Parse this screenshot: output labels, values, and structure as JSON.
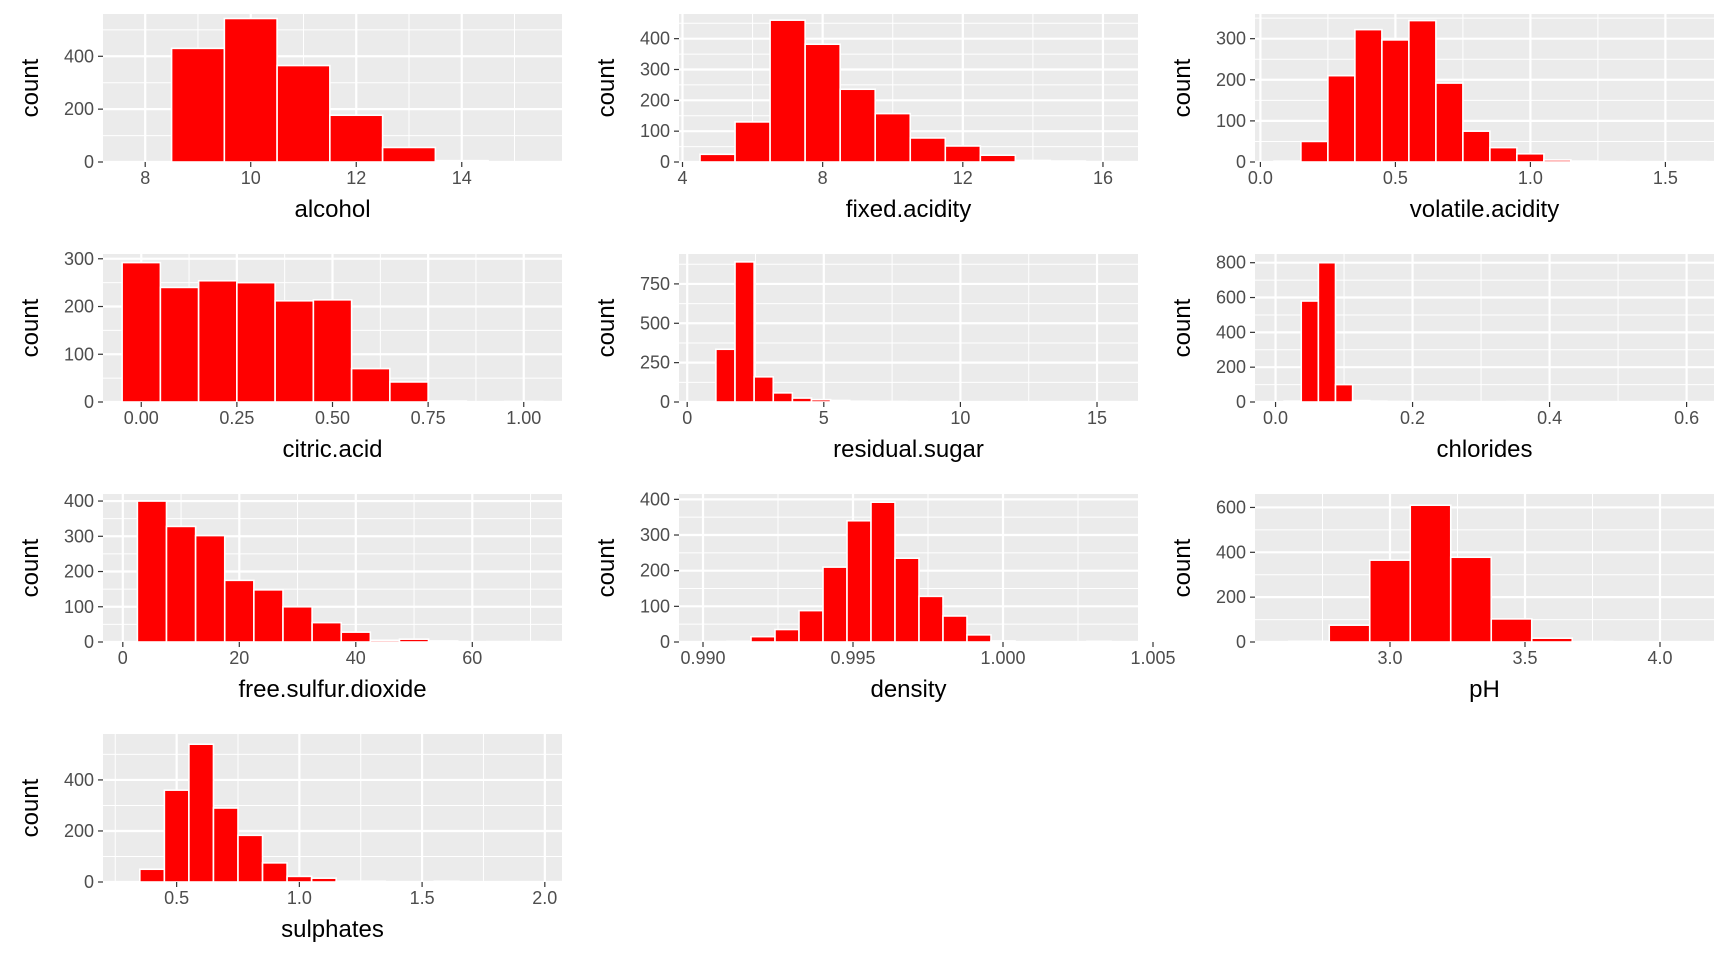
{
  "style": {
    "panel_bg": "#EBEBEB",
    "grid_color": "#FFFFFF",
    "bar_fill": "#FF0000",
    "bar_outline": "#FFFFFF",
    "tick_color": "#333333",
    "text_color": "#4D4D4D"
  },
  "chart_data": [
    {
      "type": "bar",
      "xlabel": "alcohol",
      "ylabel": "count",
      "xlim": [
        7.2,
        15.9
      ],
      "ylim": [
        0,
        560
      ],
      "xticks": [
        "8",
        "10",
        "12",
        "14"
      ],
      "yticks": [
        "0",
        "200",
        "400"
      ],
      "binwidth": 1,
      "bins": [
        {
          "x": 8,
          "count": 0
        },
        {
          "x": 9,
          "count": 430
        },
        {
          "x": 10,
          "count": 543
        },
        {
          "x": 11,
          "count": 365
        },
        {
          "x": 12,
          "count": 177
        },
        {
          "x": 13,
          "count": 55
        },
        {
          "x": 14,
          "count": 5
        },
        {
          "x": 15,
          "count": 1
        }
      ]
    },
    {
      "type": "bar",
      "xlabel": "fixed.acidity",
      "ylabel": "count",
      "xlim": [
        3.9,
        17.0
      ],
      "ylim": [
        0,
        480
      ],
      "xticks": [
        "4",
        "8",
        "12",
        "16"
      ],
      "yticks": [
        "0",
        "100",
        "200",
        "300",
        "400"
      ],
      "binwidth": 1,
      "bins": [
        {
          "x": 5,
          "count": 25
        },
        {
          "x": 6,
          "count": 130
        },
        {
          "x": 7,
          "count": 460
        },
        {
          "x": 8,
          "count": 382
        },
        {
          "x": 9,
          "count": 236
        },
        {
          "x": 10,
          "count": 157
        },
        {
          "x": 11,
          "count": 78
        },
        {
          "x": 12,
          "count": 52
        },
        {
          "x": 13,
          "count": 22
        },
        {
          "x": 14,
          "count": 5
        },
        {
          "x": 15,
          "count": 3
        },
        {
          "x": 16,
          "count": 1
        }
      ]
    },
    {
      "type": "bar",
      "xlabel": "volatile.acidity",
      "ylabel": "count",
      "xlim": [
        -0.02,
        1.68
      ],
      "ylim": [
        0,
        360
      ],
      "xticks": [
        "0.0",
        "0.5",
        "1.0",
        "1.5"
      ],
      "yticks": [
        "0",
        "100",
        "200",
        "300"
      ],
      "binwidth": 0.1,
      "bins": [
        {
          "x": 0.1,
          "count": 2
        },
        {
          "x": 0.2,
          "count": 50
        },
        {
          "x": 0.3,
          "count": 210
        },
        {
          "x": 0.4,
          "count": 322
        },
        {
          "x": 0.5,
          "count": 297
        },
        {
          "x": 0.6,
          "count": 344
        },
        {
          "x": 0.7,
          "count": 192
        },
        {
          "x": 0.8,
          "count": 75
        },
        {
          "x": 0.9,
          "count": 35
        },
        {
          "x": 1.0,
          "count": 20
        },
        {
          "x": 1.1,
          "count": 5
        },
        {
          "x": 1.2,
          "count": 2
        },
        {
          "x": 1.3,
          "count": 1
        },
        {
          "x": 1.6,
          "count": 1
        }
      ]
    },
    {
      "type": "bar",
      "xlabel": "citric.acid",
      "ylabel": "count",
      "xlim": [
        -0.1,
        1.1
      ],
      "ylim": [
        0,
        310
      ],
      "xticks": [
        "0.00",
        "0.25",
        "0.50",
        "0.75",
        "1.00"
      ],
      "yticks": [
        "0",
        "100",
        "200",
        "300"
      ],
      "binwidth": 0.1,
      "bins": [
        {
          "x": 0.0,
          "count": 292
        },
        {
          "x": 0.1,
          "count": 240
        },
        {
          "x": 0.2,
          "count": 254
        },
        {
          "x": 0.3,
          "count": 250
        },
        {
          "x": 0.4,
          "count": 212
        },
        {
          "x": 0.5,
          "count": 214
        },
        {
          "x": 0.6,
          "count": 70
        },
        {
          "x": 0.7,
          "count": 42
        },
        {
          "x": 0.8,
          "count": 2
        },
        {
          "x": 1.0,
          "count": 1
        }
      ]
    },
    {
      "type": "bar",
      "xlabel": "residual.sugar",
      "ylabel": "count",
      "xlim": [
        -0.3,
        16.5
      ],
      "ylim": [
        0,
        940
      ],
      "xticks": [
        "0",
        "5",
        "10",
        "15"
      ],
      "yticks": [
        "0",
        "250",
        "500",
        "750"
      ],
      "binwidth": 0.7,
      "bins": [
        {
          "x": 0.7,
          "count": 0
        },
        {
          "x": 1.4,
          "count": 335
        },
        {
          "x": 2.1,
          "count": 890
        },
        {
          "x": 2.8,
          "count": 160
        },
        {
          "x": 3.5,
          "count": 58
        },
        {
          "x": 4.2,
          "count": 25
        },
        {
          "x": 4.9,
          "count": 15
        },
        {
          "x": 5.6,
          "count": 10
        },
        {
          "x": 6.3,
          "count": 5
        },
        {
          "x": 7.0,
          "count": 3
        },
        {
          "x": 7.7,
          "count": 3
        },
        {
          "x": 8.4,
          "count": 2
        },
        {
          "x": 9.1,
          "count": 1
        },
        {
          "x": 10.5,
          "count": 1
        },
        {
          "x": 13.3,
          "count": 1
        },
        {
          "x": 15.4,
          "count": 2
        }
      ]
    },
    {
      "type": "bar",
      "xlabel": "chlorides",
      "ylabel": "count",
      "xlim": [
        -0.03,
        0.64
      ],
      "ylim": [
        0,
        850
      ],
      "xticks": [
        "0.0",
        "0.2",
        "0.4",
        "0.6"
      ],
      "yticks": [
        "0",
        "200",
        "400",
        "600",
        "800"
      ],
      "binwidth": 0.025,
      "bins": [
        {
          "x": 0.025,
          "count": 5
        },
        {
          "x": 0.05,
          "count": 580
        },
        {
          "x": 0.075,
          "count": 800
        },
        {
          "x": 0.1,
          "count": 100
        },
        {
          "x": 0.125,
          "count": 8
        },
        {
          "x": 0.15,
          "count": 5
        },
        {
          "x": 0.175,
          "count": 3
        },
        {
          "x": 0.2,
          "count": 2
        },
        {
          "x": 0.225,
          "count": 3
        },
        {
          "x": 0.25,
          "count": 2
        },
        {
          "x": 0.3,
          "count": 1
        },
        {
          "x": 0.35,
          "count": 2
        },
        {
          "x": 0.4,
          "count": 2
        },
        {
          "x": 0.45,
          "count": 1
        },
        {
          "x": 0.6,
          "count": 1
        }
      ]
    },
    {
      "type": "bar",
      "xlabel": "free.sulfur.dioxide",
      "ylabel": "count",
      "xlim": [
        -3.4,
        75.4
      ],
      "ylim": [
        0,
        420
      ],
      "xticks": [
        "0",
        "20",
        "40",
        "60"
      ],
      "yticks": [
        "0",
        "100",
        "200",
        "300",
        "400"
      ],
      "binwidth": 5,
      "bins": [
        {
          "x": 0,
          "count": 0
        },
        {
          "x": 5,
          "count": 400
        },
        {
          "x": 10,
          "count": 328
        },
        {
          "x": 15,
          "count": 302
        },
        {
          "x": 20,
          "count": 175
        },
        {
          "x": 25,
          "count": 148
        },
        {
          "x": 30,
          "count": 100
        },
        {
          "x": 35,
          "count": 55
        },
        {
          "x": 40,
          "count": 28
        },
        {
          "x": 45,
          "count": 5
        },
        {
          "x": 50,
          "count": 8
        },
        {
          "x": 55,
          "count": 3
        },
        {
          "x": 65,
          "count": 1
        },
        {
          "x": 70,
          "count": 1
        }
      ]
    },
    {
      "type": "bar",
      "xlabel": "density",
      "ylabel": "count",
      "xlim": [
        0.9892,
        1.0045
      ],
      "ylim": [
        0,
        415
      ],
      "xticks": [
        "0.990",
        "0.995",
        "1.000",
        "1.005"
      ],
      "yticks": [
        "0",
        "100",
        "200",
        "300",
        "400"
      ],
      "binwidth": 0.0008,
      "bins": [
        {
          "x": 0.9904,
          "count": 1
        },
        {
          "x": 0.9912,
          "count": 2
        },
        {
          "x": 0.992,
          "count": 15
        },
        {
          "x": 0.9928,
          "count": 35
        },
        {
          "x": 0.9936,
          "count": 88
        },
        {
          "x": 0.9944,
          "count": 210
        },
        {
          "x": 0.9952,
          "count": 340
        },
        {
          "x": 0.996,
          "count": 392
        },
        {
          "x": 0.9968,
          "count": 235
        },
        {
          "x": 0.9976,
          "count": 128
        },
        {
          "x": 0.9984,
          "count": 73
        },
        {
          "x": 0.9992,
          "count": 20
        },
        {
          "x": 1.0,
          "count": 3
        },
        {
          "x": 1.0032,
          "count": 2
        }
      ]
    },
    {
      "type": "bar",
      "xlabel": "pH",
      "ylabel": "count",
      "xlim": [
        2.5,
        4.2
      ],
      "ylim": [
        0,
        660
      ],
      "xticks": [
        "3.0",
        "3.5",
        "4.0"
      ],
      "yticks": [
        "0",
        "200",
        "400",
        "600"
      ],
      "binwidth": 0.15,
      "bins": [
        {
          "x": 2.7,
          "count": 3
        },
        {
          "x": 2.85,
          "count": 75
        },
        {
          "x": 3.0,
          "count": 365
        },
        {
          "x": 3.15,
          "count": 610
        },
        {
          "x": 3.3,
          "count": 378
        },
        {
          "x": 3.45,
          "count": 103
        },
        {
          "x": 3.6,
          "count": 17
        },
        {
          "x": 3.75,
          "count": 2
        },
        {
          "x": 3.9,
          "count": 1
        }
      ]
    },
    {
      "type": "bar",
      "xlabel": "sulphates",
      "ylabel": "count",
      "xlim": [
        0.2,
        2.07
      ],
      "ylim": [
        0,
        580
      ],
      "xticks": [
        "0.5",
        "1.0",
        "1.5",
        "2.0"
      ],
      "yticks": [
        "0",
        "200",
        "400"
      ],
      "binwidth": 0.1,
      "bins": [
        {
          "x": 0.4,
          "count": 50
        },
        {
          "x": 0.5,
          "count": 360
        },
        {
          "x": 0.6,
          "count": 540
        },
        {
          "x": 0.7,
          "count": 290
        },
        {
          "x": 0.8,
          "count": 183
        },
        {
          "x": 0.9,
          "count": 75
        },
        {
          "x": 1.0,
          "count": 22
        },
        {
          "x": 1.1,
          "count": 15
        },
        {
          "x": 1.2,
          "count": 3
        },
        {
          "x": 1.3,
          "count": 3
        },
        {
          "x": 1.4,
          "count": 1
        },
        {
          "x": 1.5,
          "count": 1
        },
        {
          "x": 1.6,
          "count": 3
        },
        {
          "x": 1.8,
          "count": 1
        },
        {
          "x": 2.0,
          "count": 1
        }
      ]
    }
  ]
}
